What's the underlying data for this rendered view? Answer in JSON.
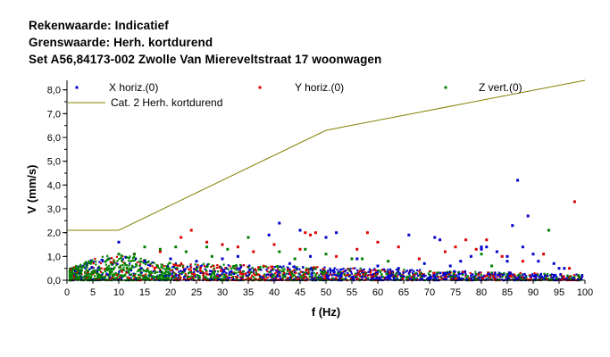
{
  "header": {
    "line1": "Rekenwaarde: Indicatief",
    "line2": "Grenswaarde: Herh. kortdurend",
    "line3": "Set A56,84173-002 Zwolle Van Miereveltstraat 17 woonwagen"
  },
  "chart_data": {
    "type": "scatter",
    "xlabel": "f (Hz)",
    "ylabel": "V (mm/s)",
    "xlim": [
      0,
      100
    ],
    "ylim": [
      0,
      8.4
    ],
    "x_ticks": [
      "0",
      "5",
      "10",
      "15",
      "20",
      "25",
      "30",
      "35",
      "40",
      "45",
      "50",
      "55",
      "60",
      "65",
      "70",
      "75",
      "80",
      "85",
      "90",
      "95",
      "100"
    ],
    "y_ticks": [
      "0,0",
      "1,0",
      "2,0",
      "3,0",
      "4,0",
      "5,0",
      "6,0",
      "7,0",
      "8,0"
    ],
    "y_tick_values": [
      0,
      1,
      2,
      3,
      4,
      5,
      6,
      7,
      8
    ],
    "grid": false,
    "legend_position": "top",
    "colors": {
      "x": "#0000cc",
      "y": "#dd0000",
      "z": "#008000",
      "limit": "#808000"
    },
    "series": [
      {
        "name": "X horiz.(0)",
        "points": [
          [
            10,
            1.6
          ],
          [
            41,
            2.4
          ],
          [
            39,
            1.9
          ],
          [
            45,
            2.1
          ],
          [
            50,
            1.8
          ],
          [
            52,
            2.0
          ],
          [
            66,
            1.9
          ],
          [
            71,
            1.8
          ],
          [
            72,
            1.7
          ],
          [
            80,
            1.4
          ],
          [
            80,
            1.3
          ],
          [
            81,
            1.4
          ],
          [
            83,
            1.2
          ],
          [
            85,
            1.0
          ],
          [
            85,
            0.8
          ],
          [
            87,
            4.2
          ],
          [
            88,
            1.4
          ],
          [
            89,
            2.7
          ],
          [
            90,
            1.1
          ],
          [
            91,
            0.8
          ],
          [
            94,
            0.7
          ],
          [
            95,
            0.5
          ],
          [
            96,
            0.5
          ],
          [
            78,
            1.0
          ],
          [
            74,
            0.6
          ],
          [
            76,
            0.8
          ],
          [
            69,
            0.7
          ],
          [
            64,
            0.5
          ],
          [
            60,
            0.6
          ],
          [
            56,
            0.9
          ],
          [
            47,
            1.0
          ],
          [
            43,
            0.7
          ],
          [
            33,
            1.0
          ],
          [
            30,
            0.9
          ],
          [
            25,
            0.8
          ],
          [
            20,
            0.9
          ],
          [
            15,
            0.8
          ],
          [
            86,
            2.3
          ]
        ]
      },
      {
        "name": "Y horiz.(0)",
        "points": [
          [
            22,
            1.8
          ],
          [
            24,
            2.1
          ],
          [
            27,
            1.6
          ],
          [
            30,
            1.5
          ],
          [
            33,
            1.4
          ],
          [
            40,
            1.5
          ],
          [
            46,
            2.0
          ],
          [
            47,
            1.9
          ],
          [
            48,
            2.0
          ],
          [
            56,
            1.3
          ],
          [
            58,
            2.0
          ],
          [
            60,
            1.6
          ],
          [
            64,
            1.4
          ],
          [
            73,
            1.2
          ],
          [
            75,
            1.4
          ],
          [
            77,
            1.7
          ],
          [
            79,
            1.3
          ],
          [
            81,
            1.7
          ],
          [
            84,
            1.0
          ],
          [
            92,
            1.1
          ],
          [
            97,
            0.5
          ],
          [
            98,
            3.3
          ],
          [
            45,
            1.3
          ],
          [
            36,
            1.2
          ],
          [
            13,
            1.1
          ],
          [
            18,
            1.2
          ],
          [
            52,
            1.0
          ],
          [
            68,
            0.9
          ],
          [
            88,
            0.8
          ]
        ]
      },
      {
        "name": "Z vert.(0)",
        "points": [
          [
            10,
            1.1
          ],
          [
            13,
            1.1
          ],
          [
            15,
            1.4
          ],
          [
            18,
            1.3
          ],
          [
            21,
            1.4
          ],
          [
            23,
            1.2
          ],
          [
            27,
            1.4
          ],
          [
            31,
            1.3
          ],
          [
            35,
            1.8
          ],
          [
            41,
            1.2
          ],
          [
            46,
            1.3
          ],
          [
            50,
            1.1
          ],
          [
            55,
            0.9
          ],
          [
            57,
            0.9
          ],
          [
            62,
            0.8
          ],
          [
            80,
            1.1
          ],
          [
            82,
            0.6
          ],
          [
            93,
            2.1
          ],
          [
            28,
            1.0
          ],
          [
            44,
            0.9
          ]
        ]
      }
    ],
    "limit_line": {
      "name": "Cat. 2 Herh. kortdurend",
      "points": [
        [
          0,
          2.1
        ],
        [
          10,
          2.1
        ],
        [
          50,
          6.3
        ],
        [
          100,
          8.4
        ]
      ]
    }
  }
}
